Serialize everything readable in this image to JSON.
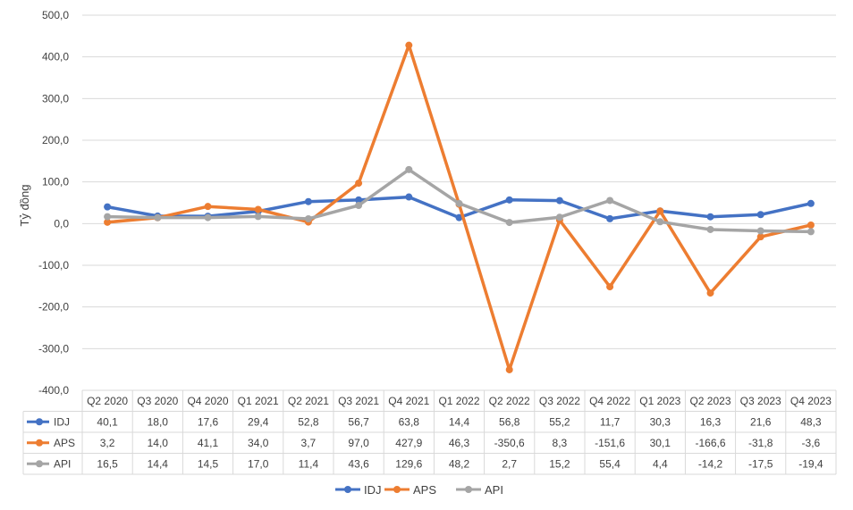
{
  "chart_data": {
    "type": "line",
    "ylabel": "Tỷ đồng",
    "ylim": [
      -400,
      500
    ],
    "ytick_step": 100,
    "ytick_labels": [
      "500,0",
      "400,0",
      "300,0",
      "200,0",
      "100,0",
      "0,0",
      "-100,0",
      "-200,0",
      "-300,0",
      "-400,0"
    ],
    "grid": true,
    "legend": "bottom",
    "categories": [
      "Q2 2020",
      "Q3 2020",
      "Q4 2020",
      "Q1 2021",
      "Q2 2021",
      "Q3 2021",
      "Q4 2021",
      "Q1 2022",
      "Q2 2022",
      "Q3 2022",
      "Q4 2022",
      "Q1 2023",
      "Q2 2023",
      "Q3 2023",
      "Q4 2023"
    ],
    "series": [
      {
        "name": "IDJ",
        "color": "#4472C4",
        "values": [
          40.1,
          18.0,
          17.6,
          29.4,
          52.8,
          56.7,
          63.8,
          14.4,
          56.8,
          55.2,
          11.7,
          30.3,
          16.3,
          21.6,
          48.3
        ],
        "labels": [
          "40,1",
          "18,0",
          "17,6",
          "29,4",
          "52,8",
          "56,7",
          "63,8",
          "14,4",
          "56,8",
          "55,2",
          "11,7",
          "30,3",
          "16,3",
          "21,6",
          "48,3"
        ]
      },
      {
        "name": "APS",
        "color": "#ED7D31",
        "values": [
          3.2,
          14.0,
          41.1,
          34.0,
          3.7,
          97.0,
          427.9,
          46.3,
          -350.6,
          8.3,
          -151.6,
          30.1,
          -166.6,
          -31.8,
          -3.6
        ],
        "labels": [
          "3,2",
          "14,0",
          "41,1",
          "34,0",
          "3,7",
          "97,0",
          "427,9",
          "46,3",
          "-350,6",
          "8,3",
          "-151,6",
          "30,1",
          "-166,6",
          "-31,8",
          "-3,6"
        ]
      },
      {
        "name": "API",
        "color": "#A5A5A5",
        "values": [
          16.5,
          14.4,
          14.5,
          17.0,
          11.4,
          43.6,
          129.6,
          48.2,
          2.7,
          15.2,
          55.4,
          4.4,
          -14.2,
          -17.5,
          -19.4
        ],
        "labels": [
          "16,5",
          "14,4",
          "14,5",
          "17,0",
          "11,4",
          "43,6",
          "129,6",
          "48,2",
          "2,7",
          "15,2",
          "55,4",
          "4,4",
          "-14,2",
          "-17,5",
          "-19,4"
        ]
      }
    ]
  }
}
